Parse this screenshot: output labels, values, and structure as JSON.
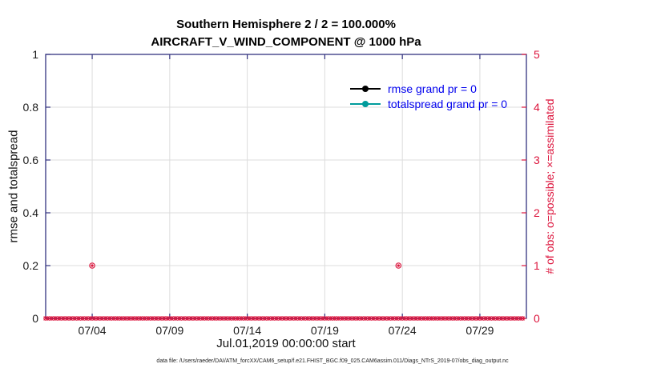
{
  "chart_data": {
    "type": "scatter",
    "title": "Southern Hemisphere 2 / 2 = 100.000%",
    "subtitle": "AIRCRAFT_V_WIND_COMPONENT @ 1000 hPa",
    "xlabel": "Jul.01,2019 00:00:00 start",
    "ylabel_left": "rmse and totalspread",
    "ylabel_right": "# of obs: o=possible; ×=assimilated",
    "xlim": [
      1,
      32
    ],
    "ylim_left": [
      0,
      1
    ],
    "ylim_right": [
      0,
      5
    ],
    "grid": true,
    "xticks": [
      {
        "value": 4,
        "label": "07/04"
      },
      {
        "value": 9,
        "label": "07/09"
      },
      {
        "value": 14,
        "label": "07/14"
      },
      {
        "value": 19,
        "label": "07/19"
      },
      {
        "value": 24,
        "label": "07/24"
      },
      {
        "value": 29,
        "label": "07/29"
      }
    ],
    "yticks_left": [
      {
        "value": 0,
        "label": "0"
      },
      {
        "value": 0.2,
        "label": "0.2"
      },
      {
        "value": 0.4,
        "label": "0.4"
      },
      {
        "value": 0.6,
        "label": "0.6"
      },
      {
        "value": 0.8,
        "label": "0.8"
      },
      {
        "value": 1,
        "label": "1"
      }
    ],
    "yticks_right": [
      {
        "value": 0,
        "label": "0"
      },
      {
        "value": 1,
        "label": "1"
      },
      {
        "value": 2,
        "label": "2"
      },
      {
        "value": 3,
        "label": "3"
      },
      {
        "value": 4,
        "label": "4"
      },
      {
        "value": 5,
        "label": "5"
      }
    ],
    "legend": {
      "position": "top-right",
      "items": [
        {
          "label": "rmse grand pr = 0",
          "color": "#000000"
        },
        {
          "label": "totalspread grand pr = 0",
          "color": "#009b9b"
        }
      ]
    },
    "series": [
      {
        "name": "obs-count-zero-row",
        "axis": "right",
        "marker": "o+x",
        "color": "#dc143c",
        "x_start": 1,
        "x_end": 31.75,
        "x_step": 0.25,
        "y_constant": 0
      },
      {
        "name": "obs-possible-nonzero",
        "axis": "right",
        "marker": "o.",
        "color": "#dc143c",
        "points": [
          {
            "x": 4,
            "y": 1
          },
          {
            "x": 23.75,
            "y": 1
          }
        ]
      }
    ],
    "colors": {
      "frame": "#33337f",
      "grid": "#dcdcdc",
      "tick_text": "#1a1a1a",
      "right_axis": "#dc143c",
      "legend_text": "#0000ee"
    }
  },
  "footer": {
    "data_file": "data file: /Users/raeder/DAI/ATM_forcXX/CAM6_setup/f.e21.FHIST_BGC.f09_025.CAM6assim.011/Diags_NTrS_2019-07/obs_diag_output.nc"
  }
}
